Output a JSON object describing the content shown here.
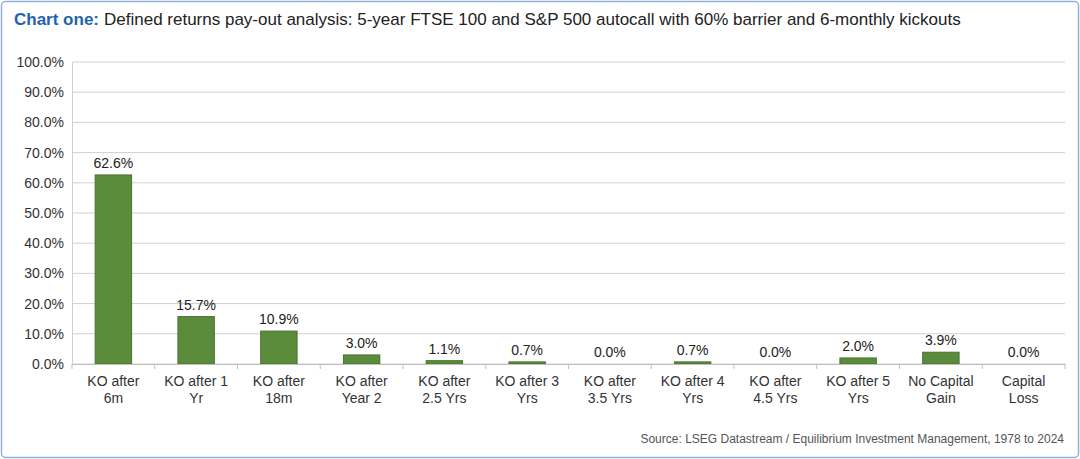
{
  "chart_data": {
    "type": "bar",
    "title": "Chart one:",
    "subtitle": "Defined returns pay-out analysis: 5-year FTSE 100 and S&P 500 autocall with 60% barrier and 6-monthly kickouts",
    "source": "Source: LSEG Datastream / Equilibrium Investment Management, 1978 to 2024",
    "categories": [
      "KO after 6m",
      "KO after 1 Yr",
      "KO after 18m",
      "KO after Year 2",
      "KO after 2.5 Yrs",
      "KO after 3 Yrs",
      "KO after 3.5 Yrs",
      "KO after 4 Yrs",
      "KO after 4.5 Yrs",
      "KO after 5 Yrs",
      "No Capital Gain",
      "Capital Loss"
    ],
    "values": [
      62.6,
      15.7,
      10.9,
      3.0,
      1.1,
      0.7,
      0.0,
      0.7,
      0.0,
      2.0,
      3.9,
      0.0
    ],
    "value_labels": [
      "62.6%",
      "15.7%",
      "10.9%",
      "3.0%",
      "1.1%",
      "0.7%",
      "0.0%",
      "0.7%",
      "0.0%",
      "2.0%",
      "3.9%",
      "0.0%"
    ],
    "color": "#5b8c3b",
    "ylim": [
      0,
      100
    ],
    "yticks": [
      {
        "value": 0,
        "label": "0.0%"
      },
      {
        "value": 10,
        "label": "10.0%"
      },
      {
        "value": 20,
        "label": "20.0%"
      },
      {
        "value": 30,
        "label": "30.0%"
      },
      {
        "value": 40,
        "label": "40.0%"
      },
      {
        "value": 50,
        "label": "50.0%"
      },
      {
        "value": 60,
        "label": "60.0%"
      },
      {
        "value": 70,
        "label": "70.0%"
      },
      {
        "value": 80,
        "label": "80.0%"
      },
      {
        "value": 90,
        "label": "90.0%"
      },
      {
        "value": 100,
        "label": "100.0%"
      }
    ],
    "grid": true,
    "data_labels": true
  }
}
